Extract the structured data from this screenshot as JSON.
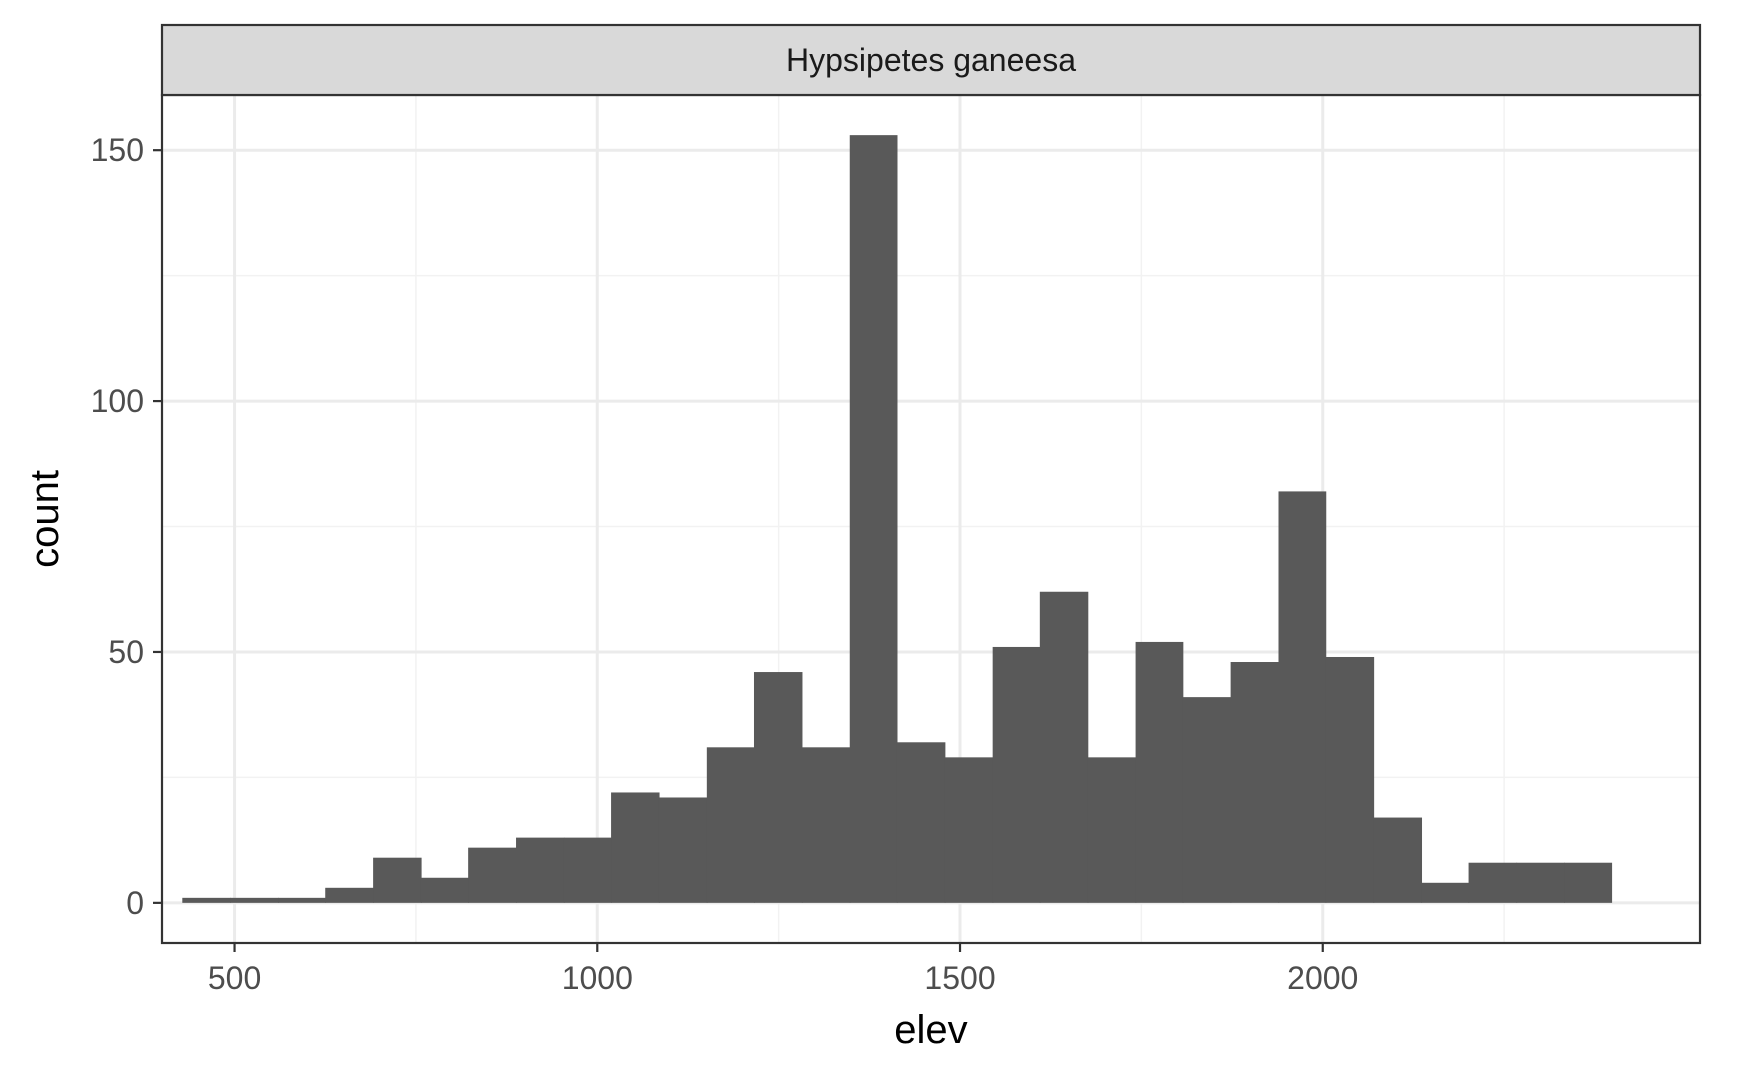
{
  "chart_data": {
    "type": "bar",
    "subtype": "histogram",
    "facet_label": "Hypsipetes ganeesa",
    "xlabel": "elev",
    "ylabel": "count",
    "xlim": [
      400,
      2520
    ],
    "ylim": [
      -8,
      161
    ],
    "x_ticks": [
      500,
      1000,
      1500,
      2000
    ],
    "x_tick_labels": [
      "500",
      "1000",
      "1500",
      "2000"
    ],
    "y_ticks": [
      0,
      50,
      100,
      150
    ],
    "y_tick_labels": [
      "0",
      "50",
      "100",
      "150"
    ],
    "grid": true,
    "bins": [
      {
        "x0": 428,
        "x1": 494,
        "count": 1
      },
      {
        "x0": 494,
        "x1": 560,
        "count": 1
      },
      {
        "x0": 560,
        "x1": 625,
        "count": 1
      },
      {
        "x0": 625,
        "x1": 691,
        "count": 3
      },
      {
        "x0": 691,
        "x1": 757,
        "count": 9
      },
      {
        "x0": 757,
        "x1": 822,
        "count": 5
      },
      {
        "x0": 822,
        "x1": 888,
        "count": 11
      },
      {
        "x0": 888,
        "x1": 954,
        "count": 13
      },
      {
        "x0": 954,
        "x1": 1019,
        "count": 13
      },
      {
        "x0": 1019,
        "x1": 1085,
        "count": 22
      },
      {
        "x0": 1085,
        "x1": 1151,
        "count": 21
      },
      {
        "x0": 1151,
        "x1": 1216,
        "count": 31
      },
      {
        "x0": 1216,
        "x1": 1282,
        "count": 46
      },
      {
        "x0": 1282,
        "x1": 1348,
        "count": 31
      },
      {
        "x0": 1348,
        "x1": 1413,
        "count": 153
      },
      {
        "x0": 1413,
        "x1": 1479,
        "count": 32
      },
      {
        "x0": 1479,
        "x1": 1545,
        "count": 29
      },
      {
        "x0": 1545,
        "x1": 1610,
        "count": 51
      },
      {
        "x0": 1610,
        "x1": 1676,
        "count": 62
      },
      {
        "x0": 1676,
        "x1": 1742,
        "count": 29
      },
      {
        "x0": 1742,
        "x1": 1807,
        "count": 52
      },
      {
        "x0": 1807,
        "x1": 1873,
        "count": 41
      },
      {
        "x0": 1873,
        "x1": 1939,
        "count": 48
      },
      {
        "x0": 1939,
        "x1": 2004,
        "count": 82
      },
      {
        "x0": 2004,
        "x1": 2070,
        "count": 49
      },
      {
        "x0": 2070,
        "x1": 2136,
        "count": 17
      },
      {
        "x0": 2136,
        "x1": 2201,
        "count": 4
      },
      {
        "x0": 2201,
        "x1": 2267,
        "count": 8
      },
      {
        "x0": 2267,
        "x1": 2333,
        "count": 8
      },
      {
        "x0": 2333,
        "x1": 2398,
        "count": 8
      }
    ],
    "colors": {
      "bar_fill": "#595959",
      "strip_fill": "#d9d9d9",
      "panel_border": "#333333",
      "grid_major": "#ebebeb",
      "grid_minor": "#f2f2f2",
      "tick_mark": "#333333"
    }
  }
}
